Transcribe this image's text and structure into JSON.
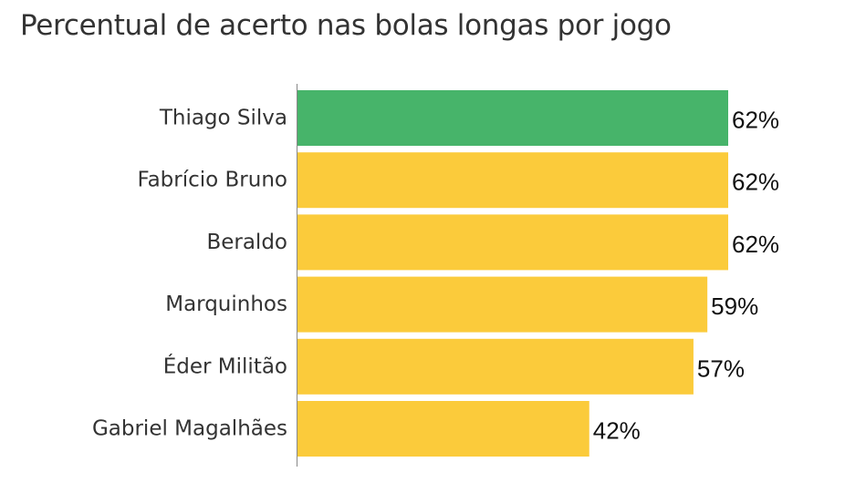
{
  "chart_data": {
    "type": "bar",
    "orientation": "horizontal",
    "title": "Percentual de acerto nas bolas longas por jogo",
    "xlabel": "",
    "ylabel": "",
    "categories": [
      "Thiago Silva",
      "Fabrício Bruno",
      "Beraldo",
      "Marquinhos",
      "Éder Militão",
      "Gabriel Magalhães"
    ],
    "values": [
      62,
      62,
      62,
      59,
      57,
      42
    ],
    "value_labels": [
      "62%",
      "62%",
      "62%",
      "59%",
      "57%",
      "42%"
    ],
    "bar_colors": [
      "#47b46a",
      "#fbcb3b",
      "#fbcb3b",
      "#fbcb3b",
      "#fbcb3b",
      "#fbcb3b"
    ],
    "axis_color": "#888888",
    "xlim": [
      0,
      62
    ],
    "grid": false,
    "legend": "none"
  }
}
